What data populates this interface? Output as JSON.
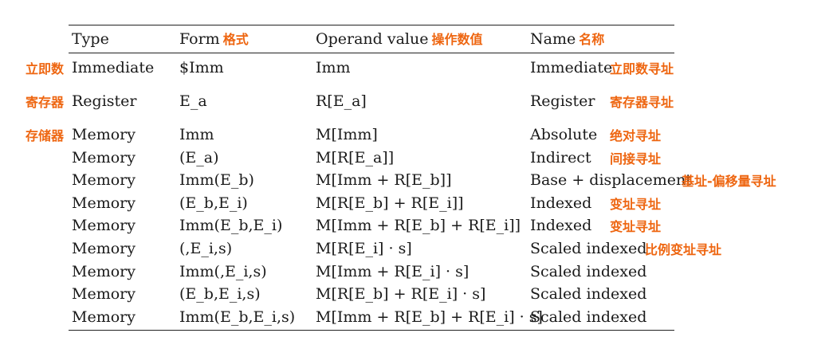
{
  "header": {
    "type": "Type",
    "form": "Form",
    "form_cn": "格式",
    "operand_value": "Operand value",
    "operand_value_cn": "操作数值",
    "name": "Name",
    "name_cn": "名称"
  },
  "rows": [
    {
      "side_cn": "立即数",
      "type": "Immediate",
      "form": "$Imm",
      "operand_value": "Imm",
      "name": "Immediate",
      "name_cn": "立即数寻址"
    },
    {
      "side_cn": "寄存器",
      "type": "Register",
      "form": "E_a",
      "operand_value": "R[E_a]",
      "name": "Register",
      "name_cn": "寄存器寻址"
    },
    {
      "side_cn": "存储器",
      "type": "Memory",
      "form": "Imm",
      "operand_value": "M[Imm]",
      "name": "Absolute",
      "name_cn": "绝对寻址"
    },
    {
      "side_cn": "",
      "type": "Memory",
      "form": "(E_a)",
      "operand_value": "M[R[E_a]]",
      "name": "Indirect",
      "name_cn": "间接寻址"
    },
    {
      "side_cn": "",
      "type": "Memory",
      "form": "Imm(E_b)",
      "operand_value": "M[Imm + R[E_b]]",
      "name": "Base + displacement",
      "name_cn": "基址-偏移量寻址"
    },
    {
      "side_cn": "",
      "type": "Memory",
      "form": "(E_b,E_i)",
      "operand_value": "M[R[E_b] + R[E_i]]",
      "name": "Indexed",
      "name_cn": "变址寻址"
    },
    {
      "side_cn": "",
      "type": "Memory",
      "form": "Imm(E_b,E_i)",
      "operand_value": "M[Imm + R[E_b] + R[E_i]]",
      "name": "Indexed",
      "name_cn": "变址寻址"
    },
    {
      "side_cn": "",
      "type": "Memory",
      "form": "(,E_i,s)",
      "operand_value": "M[R[E_i] · s]",
      "name": "Scaled indexed",
      "name_cn": "比例变址寻址"
    },
    {
      "side_cn": "",
      "type": "Memory",
      "form": "Imm(,E_i,s)",
      "operand_value": "M[Imm + R[E_i] · s]",
      "name": "Scaled indexed",
      "name_cn": ""
    },
    {
      "side_cn": "",
      "type": "Memory",
      "form": "(E_b,E_i,s)",
      "operand_value": "M[R[E_b] + R[E_i] · s]",
      "name": "Scaled indexed",
      "name_cn": ""
    },
    {
      "side_cn": "",
      "type": "Memory",
      "form": "Imm(E_b,E_i,s)",
      "operand_value": "M[Imm + R[E_b] + R[E_i] · s]",
      "name": "Scaled indexed",
      "name_cn": ""
    }
  ],
  "colors": {
    "annotation": "#ee6611",
    "text": "#1a1a1a"
  }
}
